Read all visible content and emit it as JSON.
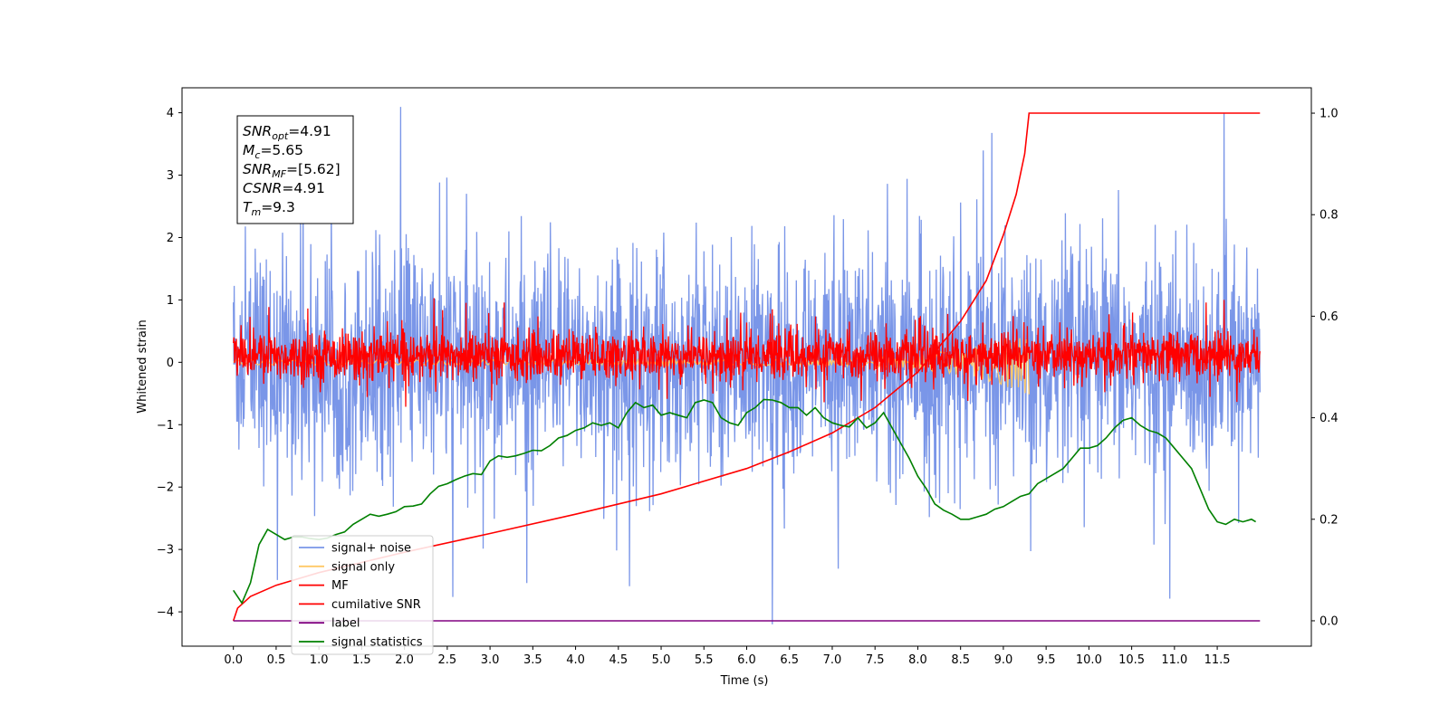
{
  "chart_data": {
    "type": "line",
    "xlabel": "Time (s)",
    "ylabel": "Whitened strain",
    "xlim": [
      -0.6,
      12.6
    ],
    "ylim": [
      -4.55,
      4.4
    ],
    "y2lim": [
      -0.05,
      1.05
    ],
    "xticks": [
      0.0,
      0.5,
      1.0,
      1.5,
      2.0,
      2.5,
      3.0,
      3.5,
      4.0,
      4.5,
      5.0,
      5.5,
      6.0,
      6.5,
      7.0,
      7.5,
      8.0,
      8.5,
      9.0,
      9.5,
      10.0,
      10.5,
      11.0,
      11.5
    ],
    "xtick_labels": [
      "0.0",
      "0.5",
      "1.0",
      "1.5",
      "2.0",
      "2.5",
      "3.0",
      "3.5",
      "4.0",
      "4.5",
      "5.0",
      "5.5",
      "6.0",
      "6.5",
      "7.0",
      "7.5",
      "8.0",
      "8.5",
      "9.0",
      "9.5",
      "10.0",
      "10.5",
      "11.0",
      "11.5"
    ],
    "yticks": [
      -4,
      -3,
      -2,
      -1,
      0,
      1,
      2,
      3,
      4
    ],
    "ytick_labels": [
      "−4",
      "−3",
      "−2",
      "−1",
      "0",
      "1",
      "2",
      "3",
      "4"
    ],
    "y2ticks": [
      0.0,
      0.2,
      0.4,
      0.6,
      0.8,
      1.0
    ],
    "y2tick_labels": [
      "0.0",
      "0.2",
      "0.4",
      "0.6",
      "0.8",
      "1.0"
    ],
    "legend_position": "lower-left",
    "grid": false,
    "series": [
      {
        "name": "signal+ noise",
        "axis": "left",
        "color": "#7a96e8",
        "kind": "noise",
        "x_range": [
          0,
          12
        ],
        "center": 0.0,
        "envelope": 1.6,
        "peaks": [
          4.0,
          -4.2
        ]
      },
      {
        "name": "signal only",
        "axis": "left",
        "color": "#ffc966",
        "kind": "chirp",
        "x_range": [
          0,
          9.3
        ],
        "peak": -0.55
      },
      {
        "name": "MF",
        "axis": "left",
        "color": "#ff0000",
        "kind": "noise",
        "x_range": [
          0,
          12
        ],
        "center": 0.1,
        "envelope": 0.35,
        "peaks": [
          1.0,
          0.85
        ]
      },
      {
        "name": "cumilative SNR",
        "axis": "right",
        "color": "#ff0000",
        "x": [
          0.0,
          0.05,
          0.2,
          0.5,
          1.0,
          1.5,
          2.0,
          3.0,
          4.0,
          5.0,
          6.0,
          6.5,
          7.0,
          7.5,
          8.0,
          8.5,
          8.8,
          9.0,
          9.15,
          9.25,
          9.3,
          12.0
        ],
        "values": [
          0.0,
          0.025,
          0.048,
          0.07,
          0.095,
          0.115,
          0.135,
          0.172,
          0.21,
          0.25,
          0.3,
          0.333,
          0.37,
          0.42,
          0.49,
          0.59,
          0.67,
          0.76,
          0.84,
          0.92,
          1.0,
          1.0
        ]
      },
      {
        "name": "label",
        "axis": "right",
        "color": "#800080",
        "x": [
          0.0,
          12.0
        ],
        "values": [
          0.0,
          0.0
        ]
      },
      {
        "name": "signal statistics",
        "axis": "right",
        "color": "#008000",
        "x": [
          0.0,
          0.1,
          0.2,
          0.3,
          0.4,
          0.5,
          0.6,
          0.7,
          0.8,
          0.9,
          1.0,
          1.1,
          1.2,
          1.3,
          1.4,
          1.5,
          1.6,
          1.7,
          1.8,
          1.9,
          2.0,
          2.1,
          2.2,
          2.3,
          2.4,
          2.5,
          2.6,
          2.7,
          2.8,
          2.9,
          3.0,
          3.1,
          3.2,
          3.3,
          3.4,
          3.5,
          3.6,
          3.7,
          3.8,
          3.9,
          4.0,
          4.1,
          4.2,
          4.3,
          4.4,
          4.5,
          4.6,
          4.7,
          4.8,
          4.9,
          5.0,
          5.1,
          5.2,
          5.3,
          5.4,
          5.5,
          5.6,
          5.7,
          5.8,
          5.9,
          6.0,
          6.1,
          6.2,
          6.3,
          6.4,
          6.5,
          6.6,
          6.7,
          6.8,
          6.9,
          7.0,
          7.1,
          7.2,
          7.3,
          7.4,
          7.5,
          7.6,
          7.7,
          7.8,
          7.9,
          8.0,
          8.1,
          8.2,
          8.3,
          8.4,
          8.5,
          8.6,
          8.7,
          8.8,
          8.9,
          9.0,
          9.1,
          9.2,
          9.3,
          9.4,
          9.5,
          9.6,
          9.7,
          9.8,
          9.9,
          10.0,
          10.1,
          10.2,
          10.3,
          10.4,
          10.5,
          10.6,
          10.7,
          10.8,
          10.9,
          11.0,
          11.1,
          11.2,
          11.3,
          11.4,
          11.5,
          11.6,
          11.7,
          11.8,
          11.9,
          11.95
        ],
        "values": [
          0.06,
          0.035,
          0.075,
          0.15,
          0.18,
          0.17,
          0.16,
          0.165,
          0.165,
          0.162,
          0.16,
          0.163,
          0.17,
          0.175,
          0.19,
          0.2,
          0.21,
          0.206,
          0.21,
          0.215,
          0.225,
          0.226,
          0.23,
          0.25,
          0.265,
          0.27,
          0.278,
          0.285,
          0.29,
          0.288,
          0.315,
          0.325,
          0.322,
          0.325,
          0.33,
          0.336,
          0.335,
          0.345,
          0.36,
          0.365,
          0.375,
          0.38,
          0.39,
          0.385,
          0.39,
          0.38,
          0.41,
          0.43,
          0.42,
          0.425,
          0.405,
          0.41,
          0.405,
          0.4,
          0.43,
          0.435,
          0.43,
          0.4,
          0.39,
          0.385,
          0.41,
          0.42,
          0.436,
          0.435,
          0.43,
          0.42,
          0.42,
          0.405,
          0.42,
          0.4,
          0.39,
          0.385,
          0.382,
          0.4,
          0.38,
          0.39,
          0.41,
          0.38,
          0.35,
          0.32,
          0.285,
          0.26,
          0.23,
          0.218,
          0.21,
          0.2,
          0.2,
          0.205,
          0.21,
          0.22,
          0.225,
          0.235,
          0.245,
          0.25,
          0.27,
          0.28,
          0.29,
          0.3,
          0.32,
          0.34,
          0.34,
          0.345,
          0.36,
          0.38,
          0.395,
          0.4,
          0.385,
          0.375,
          0.37,
          0.36,
          0.34,
          0.32,
          0.3,
          0.26,
          0.22,
          0.195,
          0.19,
          0.2,
          0.195,
          0.2,
          0.195
        ]
      }
    ],
    "annotation": {
      "lines": [
        {
          "main": "SNR",
          "sub": "opt",
          "value": "=4.91"
        },
        {
          "main": "M",
          "sub": "c",
          "value": "=5.65"
        },
        {
          "main": "SNR",
          "sub": "MF",
          "value": "=[5.62]"
        },
        {
          "main": "CSNR",
          "sub": "",
          "value": "=4.91"
        },
        {
          "main": "T",
          "sub": "m",
          "value": "=9.3"
        }
      ]
    }
  }
}
